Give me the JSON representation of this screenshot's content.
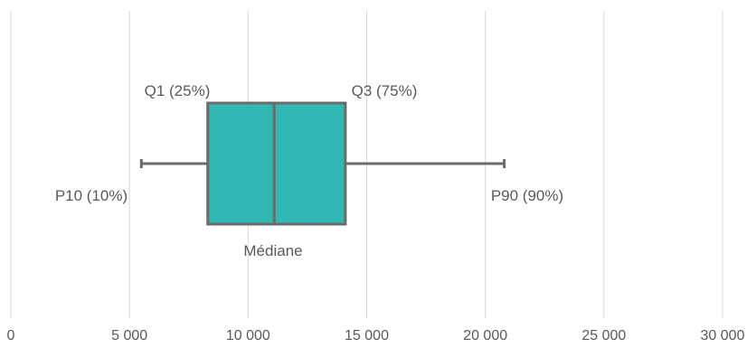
{
  "chart_data": {
    "type": "boxplot",
    "title": "",
    "xlabel": "",
    "ylabel": "",
    "xlim": [
      0,
      30000
    ],
    "x_ticks": [
      0,
      5000,
      10000,
      15000,
      20000,
      25000,
      30000
    ],
    "x_tick_labels": [
      "0",
      "5 000",
      "10 000",
      "15 000",
      "20 000",
      "25 000",
      "30 000"
    ],
    "grid": "vertical",
    "box": {
      "p10": 5500,
      "q1": 8300,
      "median": 11100,
      "q3": 14100,
      "p90": 20800,
      "fill_color": "#31b7b4",
      "stroke_color": "#6b6b6b"
    },
    "annotations": {
      "q1": "Q1 (25%)",
      "q3": "Q3 (75%)",
      "p10": "P10 (10%)",
      "p90": "P90 (90%)",
      "median": "Médiane"
    }
  }
}
